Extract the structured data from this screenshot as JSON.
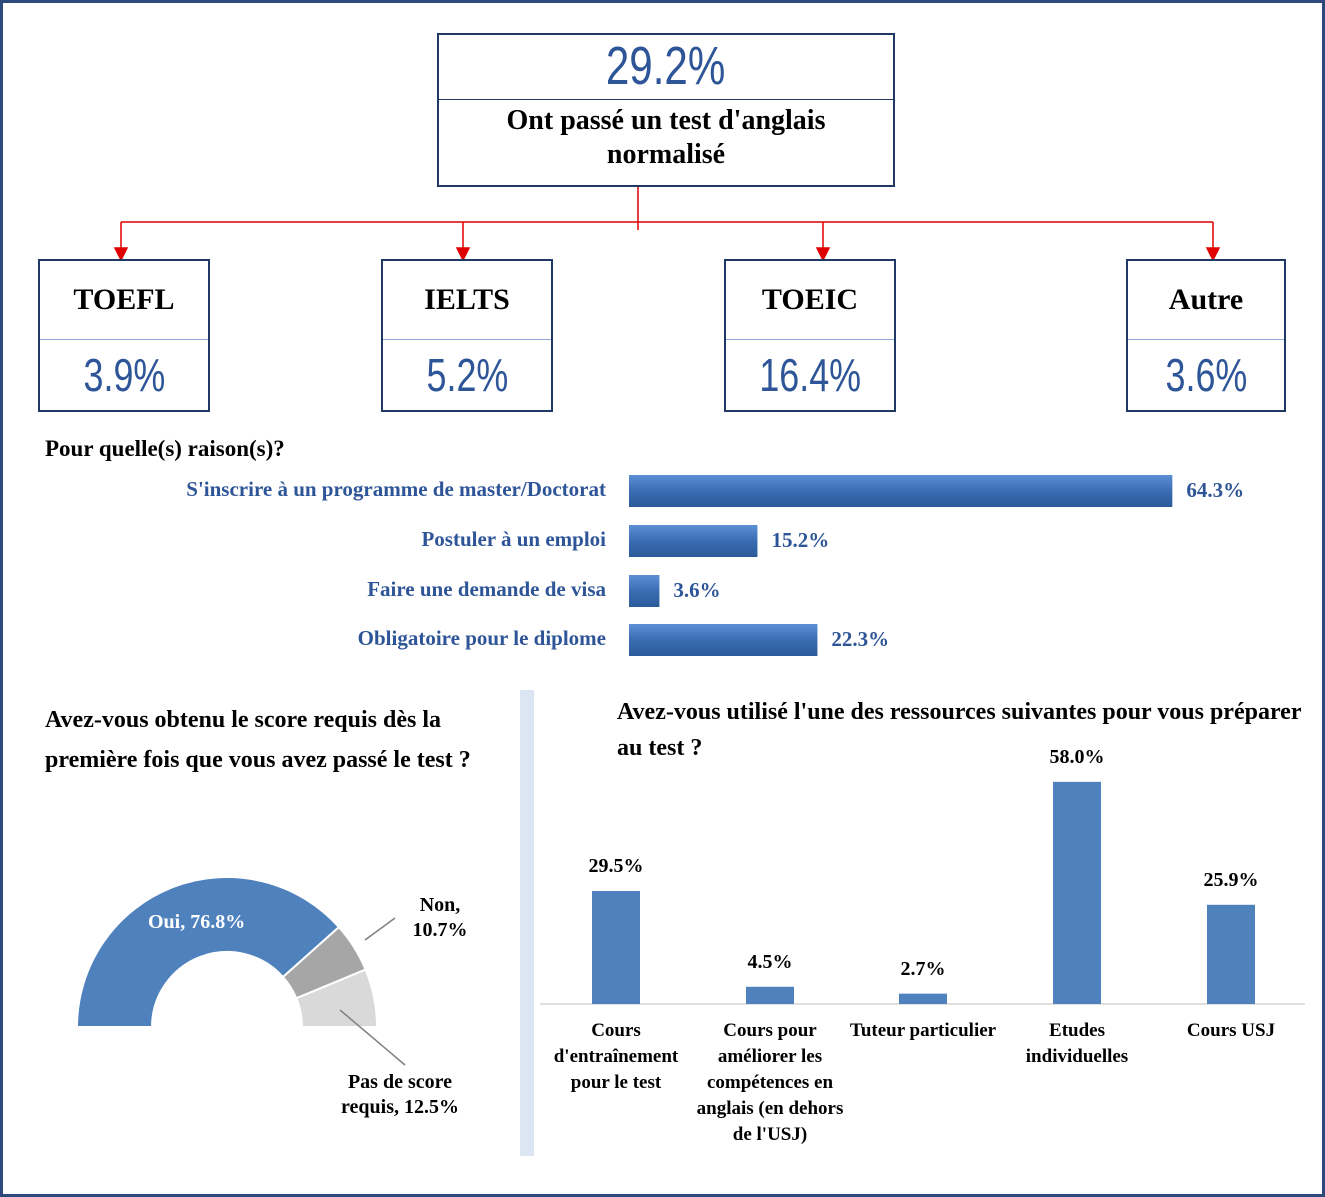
{
  "summary": {
    "value": "29.2%",
    "text": "Ont passé un test d'anglais normalisé"
  },
  "tests": [
    {
      "name": "TOEFL",
      "value": "3.9%"
    },
    {
      "name": "IELTS",
      "value": "5.2%"
    },
    {
      "name": "TOEIC",
      "value": "16.4%"
    },
    {
      "name": "Autre",
      "value": "3.6%"
    }
  ],
  "chart_data": [
    {
      "type": "hbar",
      "title": "Pour quelle(s) raison(s)?",
      "categories": [
        "S'inscrire à un programme de master/Doctorat",
        "Postuler à un emploi",
        "Faire une demande de visa",
        "Obligatoire pour le diplome"
      ],
      "values": [
        64.3,
        15.2,
        3.6,
        22.3
      ],
      "value_labels": [
        "64.3%",
        "15.2%",
        "3.6%",
        "22.3%"
      ],
      "color": "#3a6db3"
    },
    {
      "type": "halfdonut",
      "title": "Avez-vous obtenu le score requis dès la première fois que vous avez passé le test ?",
      "categories": [
        "Oui",
        "Non",
        "Pas de score requis"
      ],
      "values": [
        76.8,
        10.7,
        12.5
      ],
      "value_labels": [
        "Oui, 76.8%",
        "Non, 10.7%",
        "Pas de score requis, 12.5%"
      ],
      "colors": [
        "#4f81bd",
        "#a6a6a6",
        "#d9d9d9"
      ]
    },
    {
      "type": "bar",
      "title": "Avez-vous utilisé l'une des ressources suivantes pour vous préparer au test  ?",
      "categories": [
        "Cours d'entraînement pour le test",
        "Cours pour améliorer les compétences en anglais (en dehors de l'USJ)",
        "Tuteur particulier",
        "Etudes individuelles",
        "Cours USJ"
      ],
      "values": [
        29.5,
        4.5,
        2.7,
        58.0,
        25.9
      ],
      "value_labels": [
        "29.5%",
        "4.5%",
        "2.7%",
        "58.0%",
        "25.9%"
      ],
      "color": "#4f81bd"
    }
  ]
}
